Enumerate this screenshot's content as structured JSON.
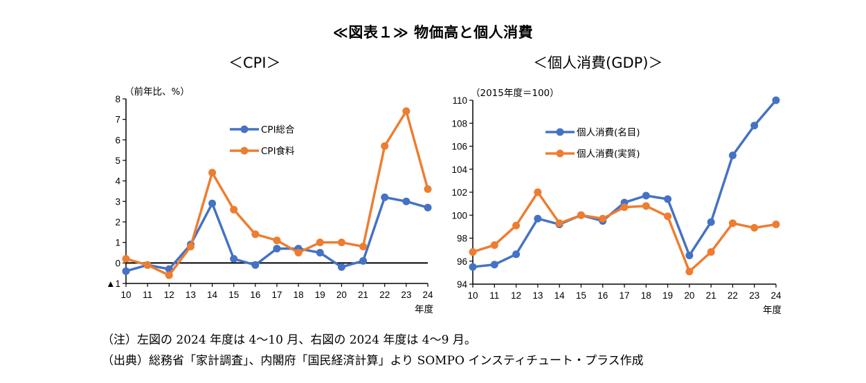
{
  "title": "≪図表１≫ 物価高と個人消費",
  "notes": {
    "note1": "（注）左図の 2024 年度は 4～10 月、右図の 2024 年度は 4～9 月。",
    "note2": "（出典）総務省「家計調査」、内閣府「国民経済計算」より SOMPO インスティチュート・プラス作成"
  },
  "colors": {
    "blue": "#4472C4",
    "orange": "#ED7D31"
  },
  "chart_data": [
    {
      "type": "line",
      "title": "＜CPI＞",
      "ylabel": "（前年比、%）",
      "xlabel": "年度",
      "x": [
        "10",
        "11",
        "12",
        "13",
        "14",
        "15",
        "16",
        "17",
        "18",
        "19",
        "20",
        "21",
        "22",
        "23",
        "24"
      ],
      "ylim": [
        -1,
        8
      ],
      "yticks": [
        -1,
        0,
        1,
        2,
        3,
        4,
        5,
        6,
        7,
        8
      ],
      "ytick_labels": [
        "▲1",
        "0",
        "1",
        "2",
        "3",
        "4",
        "5",
        "6",
        "7",
        "8"
      ],
      "zero_line": true,
      "legend_position": "upper-center",
      "series": [
        {
          "name": "CPI総合",
          "color": "#4472C4",
          "values": [
            -0.4,
            -0.1,
            -0.3,
            0.9,
            2.9,
            0.2,
            -0.1,
            0.7,
            0.7,
            0.5,
            -0.2,
            0.1,
            3.2,
            3.0,
            2.7
          ]
        },
        {
          "name": "CPI食料",
          "color": "#ED7D31",
          "values": [
            0.2,
            -0.1,
            -0.6,
            0.8,
            4.4,
            2.6,
            1.4,
            1.1,
            0.5,
            1.0,
            1.0,
            0.8,
            5.7,
            7.4,
            3.6
          ]
        }
      ]
    },
    {
      "type": "line",
      "title": "＜個人消費(GDP)＞",
      "ylabel": "（2015年度＝100）",
      "xlabel": "年度",
      "x": [
        "10",
        "11",
        "12",
        "13",
        "14",
        "15",
        "16",
        "17",
        "18",
        "19",
        "20",
        "21",
        "22",
        "23",
        "24"
      ],
      "ylim": [
        94,
        110
      ],
      "yticks": [
        94,
        96,
        98,
        100,
        102,
        104,
        106,
        108,
        110
      ],
      "ytick_labels": [
        "94",
        "96",
        "98",
        "100",
        "102",
        "104",
        "106",
        "108",
        "110"
      ],
      "zero_line": false,
      "legend_position": "upper-center",
      "series": [
        {
          "name": "個人消費(名目)",
          "color": "#4472C4",
          "values": [
            95.5,
            95.7,
            96.6,
            99.7,
            99.2,
            100.0,
            99.5,
            101.1,
            101.7,
            101.4,
            96.5,
            99.4,
            105.2,
            107.8,
            110.0
          ]
        },
        {
          "name": "個人消費(実質)",
          "color": "#ED7D31",
          "values": [
            96.8,
            97.4,
            99.1,
            102.0,
            99.3,
            100.0,
            99.7,
            100.7,
            100.8,
            99.9,
            95.1,
            96.8,
            99.3,
            98.9,
            99.2
          ]
        }
      ]
    }
  ]
}
